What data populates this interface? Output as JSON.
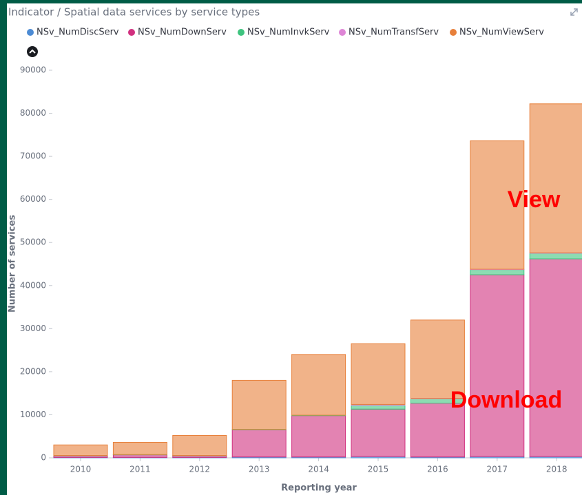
{
  "chart_data": {
    "type": "stacked_bar",
    "title": "Indicator / Spatial data services by service types",
    "x_label": "Reporting year",
    "y_label": "Number of services",
    "categories": [
      "2010",
      "2011",
      "2012",
      "2013",
      "2014",
      "2015",
      "2016",
      "2017",
      "2018"
    ],
    "series": [
      {
        "name": "NSv_NumDiscServ",
        "color": "#4c8bd4",
        "values": [
          100,
          100,
          100,
          200,
          200,
          300,
          200,
          300,
          300
        ]
      },
      {
        "name": "NSv_NumDownServ",
        "color": "#d1307f",
        "values": [
          400,
          600,
          400,
          6300,
          9600,
          11000,
          12500,
          42200,
          45900
        ]
      },
      {
        "name": "NSv_NumInvkServ",
        "color": "#3fc47f",
        "values": [
          50,
          50,
          50,
          100,
          100,
          900,
          1000,
          1200,
          1300
        ]
      },
      {
        "name": "NSv_NumTransfServ",
        "color": "#de86d6",
        "values": [
          0,
          0,
          0,
          0,
          0,
          200,
          100,
          100,
          100
        ]
      },
      {
        "name": "NSv_NumViewServ",
        "color": "#e7803b",
        "values": [
          2450,
          2850,
          4650,
          11400,
          14100,
          14100,
          18200,
          29800,
          34600
        ]
      }
    ],
    "ylim": [
      0,
      90000
    ],
    "yticks": [
      0,
      10000,
      20000,
      30000,
      40000,
      50000,
      60000,
      70000,
      80000,
      90000
    ],
    "annotations": [
      "View",
      "Download"
    ],
    "legend": "top"
  }
}
